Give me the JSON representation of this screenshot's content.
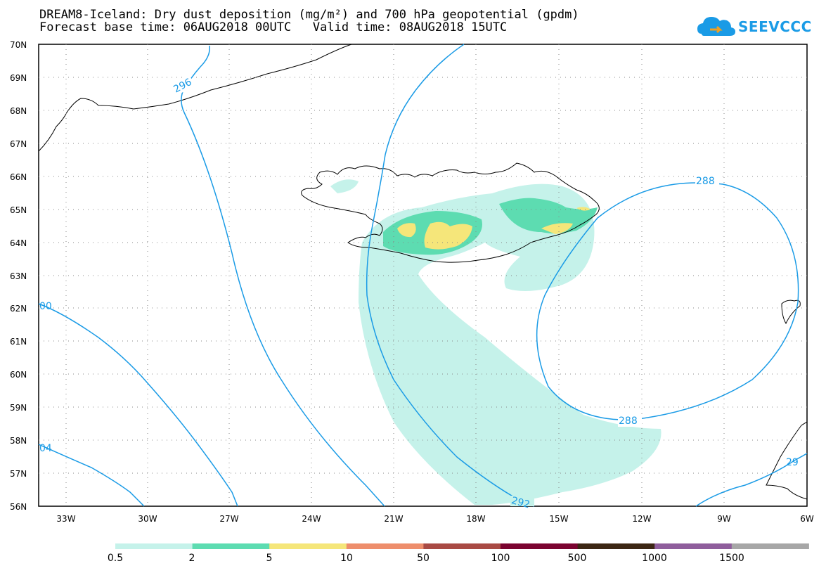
{
  "title": {
    "line1": "DREAM8-Iceland: Dry dust deposition (mg/m²) and 700 hPa geopotential (gpdm)",
    "line2": "Forecast base time: 06AUG2018 00UTC   Valid time: 08AUG2018 15UTC"
  },
  "logo": {
    "text": "SEEVCCC",
    "icon": "cloud-icon",
    "color": "#1a9be6"
  },
  "map": {
    "lat_labels": [
      "70N",
      "69N",
      "68N",
      "67N",
      "66N",
      "65N",
      "64N",
      "63N",
      "62N",
      "61N",
      "60N",
      "59N",
      "58N",
      "57N",
      "56N"
    ],
    "lon_labels": [
      "33W",
      "30W",
      "27W",
      "24W",
      "21W",
      "18W",
      "15W",
      "12W",
      "9W",
      "6W"
    ],
    "lat_range": [
      56,
      70
    ],
    "lon_range": [
      -34.5,
      -6
    ],
    "grid": "dotted",
    "contour_color": "#1a9be6",
    "contour_labels": [
      "296",
      "288",
      "288",
      "292",
      "00",
      "04",
      "29"
    ]
  },
  "colorbar": {
    "ticks": [
      "0.5",
      "2",
      "5",
      "10",
      "50",
      "100",
      "500",
      "1000",
      "1500"
    ],
    "colors": [
      "#c5f2ea",
      "#5ddcb1",
      "#f5e67a",
      "#ee8e6c",
      "#a94a44",
      "#7b0330",
      "#3c2614",
      "#8f5e9c",
      "#a7a7a7"
    ]
  }
}
